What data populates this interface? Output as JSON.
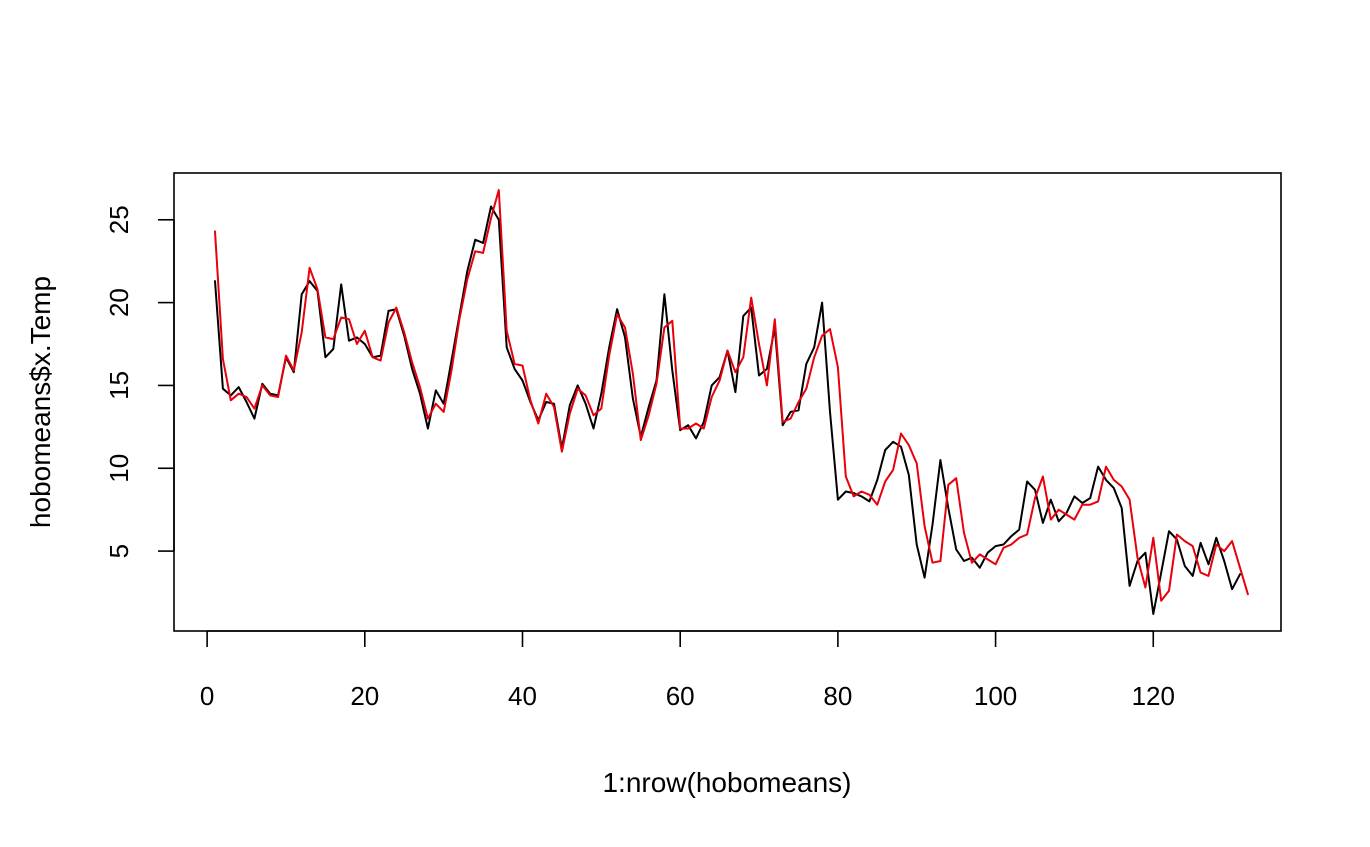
{
  "chart_data": {
    "type": "line",
    "title": "",
    "xlabel": "1:nrow(hobomeans)",
    "ylabel": "hobomeans$x.Temp",
    "xlim": [
      1,
      131
    ],
    "ylim": [
      1.2,
      26.8
    ],
    "grid": false,
    "legend": "none",
    "x_ticks": [
      0,
      20,
      40,
      60,
      80,
      100,
      120
    ],
    "y_ticks": [
      5,
      10,
      15,
      20,
      25
    ],
    "x_tick_labels": [
      "0",
      "20",
      "40",
      "60",
      "80",
      "100",
      "120"
    ],
    "y_tick_labels": [
      "5",
      "10",
      "15",
      "20",
      "25"
    ],
    "series": [
      {
        "color": "#000000",
        "values": [
          21.3,
          14.8,
          14.4,
          14.9,
          14.0,
          13.0,
          15.1,
          14.5,
          14.4,
          16.7,
          15.8,
          20.5,
          21.3,
          20.7,
          16.7,
          17.2,
          21.1,
          17.7,
          17.9,
          17.5,
          16.7,
          16.8,
          19.5,
          19.6,
          18.0,
          16.0,
          14.5,
          12.4,
          14.7,
          13.9,
          16.5,
          19.2,
          21.9,
          23.8,
          23.6,
          25.8,
          25.0,
          17.3,
          16.0,
          15.3,
          14.0,
          12.9,
          14.0,
          13.9,
          11.2,
          13.8,
          15.0,
          13.9,
          12.4,
          14.5,
          17.3,
          19.6,
          17.9,
          14.2,
          11.9,
          13.7,
          15.3,
          20.5,
          15.9,
          12.3,
          12.6,
          11.8,
          12.8,
          15.0,
          15.5,
          17.1,
          14.6,
          19.2,
          19.7,
          15.6,
          16.0,
          18.5,
          12.6,
          13.4,
          13.5,
          16.3,
          17.3,
          20.0,
          13.4,
          8.1,
          8.6,
          8.5,
          8.3,
          8.0,
          9.3,
          11.1,
          11.6,
          11.3,
          9.6,
          5.4,
          3.4,
          6.6,
          10.5,
          7.6,
          5.1,
          4.4,
          4.6,
          4.0,
          4.9,
          5.3,
          5.4,
          5.9,
          6.3,
          9.2,
          8.7,
          6.7,
          8.1,
          6.8,
          7.3,
          8.3,
          7.9,
          8.2,
          10.1,
          9.3,
          8.8,
          7.6,
          2.9,
          4.4,
          4.9,
          1.2,
          3.7,
          6.2,
          5.7,
          4.1,
          3.5,
          5.5,
          4.2,
          5.8,
          4.4,
          2.7,
          3.6
        ]
      },
      {
        "color": "#e8000b",
        "values": [
          24.3,
          16.6,
          14.1,
          14.5,
          14.3,
          13.6,
          15.0,
          14.4,
          14.3,
          16.8,
          15.9,
          18.2,
          22.1,
          20.8,
          17.9,
          17.8,
          19.1,
          19.0,
          17.5,
          18.3,
          16.7,
          16.5,
          18.8,
          19.7,
          18.2,
          16.4,
          14.9,
          13.0,
          13.9,
          13.4,
          15.9,
          19.0,
          21.4,
          23.1,
          23.0,
          25.1,
          26.8,
          18.3,
          16.3,
          16.2,
          14.1,
          12.7,
          14.5,
          13.7,
          11.0,
          13.3,
          14.8,
          14.4,
          13.2,
          13.6,
          16.8,
          19.3,
          18.5,
          15.7,
          11.7,
          13.2,
          15.1,
          18.5,
          18.9,
          12.4,
          12.4,
          12.7,
          12.4,
          14.3,
          15.3,
          17.1,
          15.8,
          16.7,
          20.3,
          17.5,
          15.0,
          19.0,
          12.8,
          13.0,
          14.0,
          14.8,
          16.7,
          18.0,
          18.4,
          16.1,
          9.5,
          8.3,
          8.6,
          8.4,
          7.8,
          9.2,
          9.9,
          12.1,
          11.4,
          10.3,
          6.5,
          4.3,
          4.4,
          9.0,
          9.4,
          6.1,
          4.3,
          4.8,
          4.5,
          4.2,
          5.2,
          5.4,
          5.8,
          6.0,
          8.2,
          9.5,
          6.9,
          7.5,
          7.2,
          6.9,
          7.8,
          7.8,
          8.0,
          10.1,
          9.3,
          8.9,
          8.1,
          4.6,
          2.8,
          5.8,
          2.0,
          2.6,
          6.0,
          5.6,
          5.3,
          3.7,
          3.5,
          5.4,
          5.0,
          5.6,
          4.0,
          2.4
        ]
      }
    ]
  }
}
